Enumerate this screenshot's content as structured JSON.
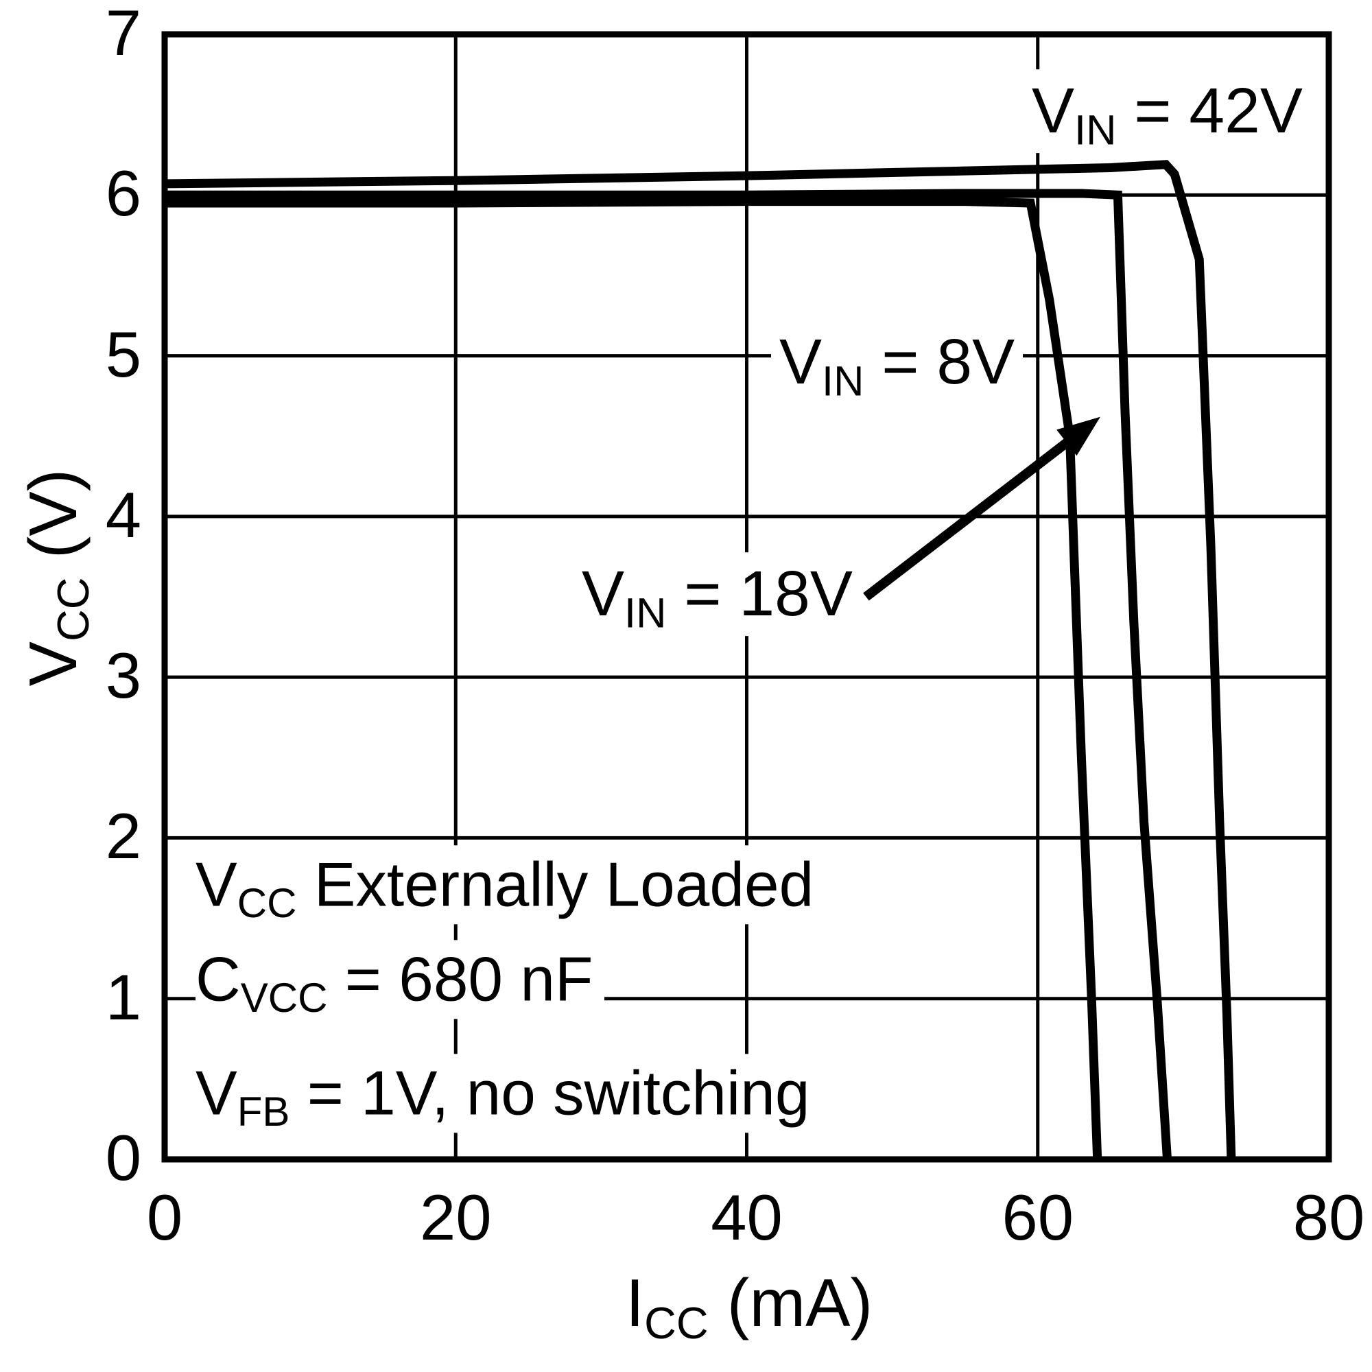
{
  "figure": {
    "background_color": "#ffffff",
    "line_color": "#000000"
  },
  "chart_data": {
    "type": "line",
    "title": "",
    "xlabel": "ICC (mA)",
    "ylabel": "VCC (V)",
    "xlabel_parts": [
      {
        "t": "I"
      },
      {
        "t": "CC",
        "sub": true
      },
      {
        "t": " (mA)"
      }
    ],
    "ylabel_parts": [
      {
        "t": "V"
      },
      {
        "t": "CC",
        "sub": true
      },
      {
        "t": " (V)"
      }
    ],
    "xlim": [
      0,
      80
    ],
    "ylim": [
      0,
      7
    ],
    "x_ticks": [
      0,
      20,
      40,
      60,
      80
    ],
    "y_ticks": [
      0,
      1,
      2,
      3,
      4,
      5,
      6,
      7
    ],
    "grid": true,
    "legend_position": "none",
    "series": [
      {
        "name": "VIN = 8V",
        "points": [
          [
            0,
            5.95
          ],
          [
            20,
            5.95
          ],
          [
            40,
            5.96
          ],
          [
            55,
            5.96
          ],
          [
            59.5,
            5.95
          ],
          [
            60.8,
            5.35
          ],
          [
            62.2,
            4.5
          ],
          [
            63.0,
            2.5
          ],
          [
            63.7,
            1.0
          ],
          [
            64.1,
            0
          ]
        ]
      },
      {
        "name": "VIN = 18V",
        "points": [
          [
            0,
            6.0
          ],
          [
            20,
            6.0
          ],
          [
            40,
            6.0
          ],
          [
            55,
            6.01
          ],
          [
            63,
            6.01
          ],
          [
            65.5,
            6.0
          ],
          [
            66.0,
            4.65
          ],
          [
            66.6,
            3.35
          ],
          [
            67.3,
            2.1
          ],
          [
            68.2,
            1.0
          ],
          [
            68.9,
            0
          ]
        ]
      },
      {
        "name": "VIN = 42V",
        "points": [
          [
            0,
            6.07
          ],
          [
            20,
            6.09
          ],
          [
            40,
            6.12
          ],
          [
            55,
            6.15
          ],
          [
            65,
            6.17
          ],
          [
            68.8,
            6.19
          ],
          [
            69.4,
            6.13
          ],
          [
            71.1,
            5.6
          ],
          [
            71.9,
            3.8
          ],
          [
            72.5,
            2.1
          ],
          [
            73.0,
            0.9
          ],
          [
            73.3,
            0
          ]
        ]
      }
    ],
    "annotations": {
      "arrow": {
        "from": [
          48.2,
          3.5
        ],
        "to": [
          64.3,
          4.62
        ]
      }
    }
  },
  "labels": {
    "vin42": {
      "parts": [
        {
          "t": "V"
        },
        {
          "t": "IN",
          "sub": true
        },
        {
          "t": " = 42V"
        }
      ]
    },
    "vin8": {
      "parts": [
        {
          "t": "V"
        },
        {
          "t": "IN",
          "sub": true
        },
        {
          "t": " = 8V"
        }
      ]
    },
    "vin18": {
      "parts": [
        {
          "t": "V"
        },
        {
          "t": "IN",
          "sub": true
        },
        {
          "t": " = 18V"
        }
      ]
    },
    "conditions": {
      "line1": {
        "parts": [
          {
            "t": "V"
          },
          {
            "t": "CC",
            "sub": true
          },
          {
            "t": " Externally Loaded"
          }
        ]
      },
      "line2": {
        "parts": [
          {
            "t": "C"
          },
          {
            "t": "VCC",
            "sub": true
          },
          {
            "t": " = 680 nF"
          }
        ]
      },
      "line3": {
        "parts": [
          {
            "t": "V"
          },
          {
            "t": "FB",
            "sub": true
          },
          {
            "t": " = 1V, no switching"
          }
        ]
      }
    }
  }
}
